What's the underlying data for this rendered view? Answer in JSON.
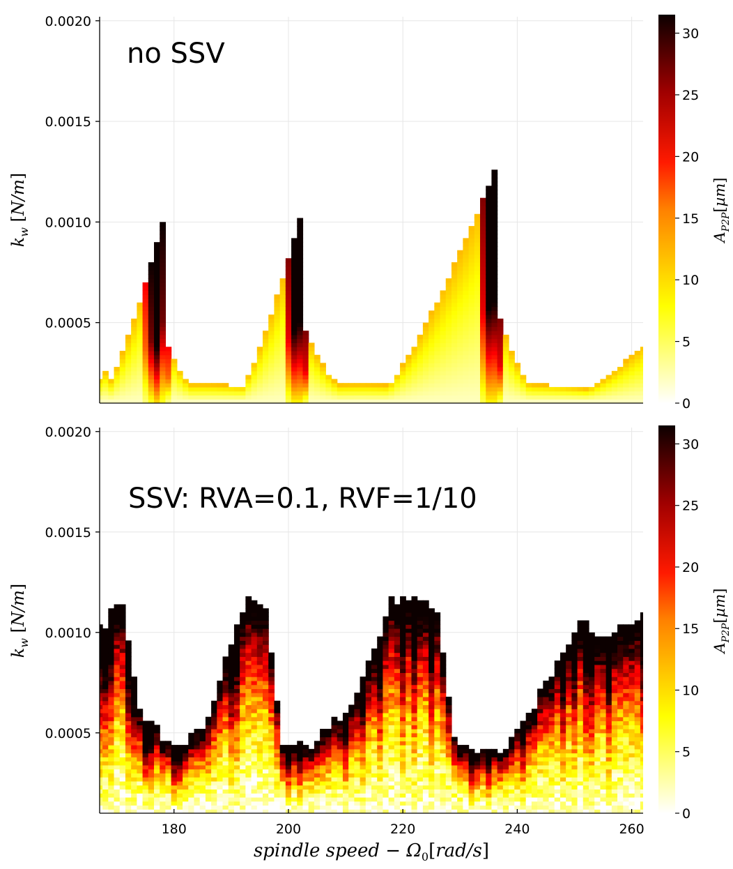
{
  "chart_data": [
    {
      "type": "heatmap",
      "annotation": "no SSV",
      "xlabel": "spindle speed − Ω₀[rad/s]",
      "ylabel": "k_w [N/m]",
      "colorbar_label": "A_P2P [µm]",
      "colormap": "hot (reversed)",
      "xlim": [
        167,
        262
      ],
      "ylim": [
        0.0001,
        0.00202
      ],
      "clim": [
        0,
        31.5
      ],
      "x_ticks": [
        180,
        200,
        220,
        240,
        260
      ],
      "x_tick_labels": [
        "180",
        "200",
        "220",
        "240",
        "260"
      ],
      "y_ticks": [
        0.0005,
        0.001,
        0.0015,
        0.002
      ],
      "y_tick_labels": [
        "0.0005",
        "0.0010",
        "0.0015",
        "0.0020"
      ],
      "cbar_ticks": [
        0,
        5,
        10,
        15,
        20,
        25,
        30
      ],
      "cbar_tick_labels": [
        "0",
        "5",
        "10",
        "15",
        "20",
        "25",
        "30"
      ],
      "grid": true,
      "lobes": [
        {
          "center": 178,
          "peak_kw": 0.00099,
          "min_kw": 0.00016,
          "left_width": 10,
          "right_width": 6
        },
        {
          "center": 202.5,
          "peak_kw": 0.00106,
          "min_kw": 0.000155,
          "left_width": 11,
          "right_width": 8
        },
        {
          "center": 236.5,
          "peak_kw": 0.00128,
          "min_kw": 0.000155,
          "left_width": 20,
          "right_width": 7
        },
        {
          "center": 262,
          "peak_kw": 0.00038,
          "min_kw": 0.00016,
          "left_width": 10,
          "right_width": 1
        }
      ]
    },
    {
      "type": "heatmap",
      "annotation": "SSV: RVA=0.1, RVF=1/10",
      "xlabel": "spindle speed − Ω₀[rad/s]",
      "ylabel": "k_w [N/m]",
      "colorbar_label": "A_P2P [µm]",
      "colormap": "hot (reversed)",
      "xlim": [
        167,
        262
      ],
      "ylim": [
        0.0001,
        0.00202
      ],
      "clim": [
        0,
        31.5
      ],
      "x_ticks": [
        180,
        200,
        220,
        240,
        260
      ],
      "x_tick_labels": [
        "180",
        "200",
        "220",
        "240",
        "260"
      ],
      "y_ticks": [
        0.0005,
        0.001,
        0.0015,
        0.002
      ],
      "y_tick_labels": [
        "0.0005",
        "0.0010",
        "0.0015",
        "0.0020"
      ],
      "cbar_ticks": [
        0,
        5,
        10,
        15,
        20,
        25,
        30
      ],
      "cbar_tick_labels": [
        "0",
        "5",
        "10",
        "15",
        "20",
        "25",
        "30"
      ],
      "grid": true,
      "boundary_kw": [
        [
          167,
          0.001
        ],
        [
          171,
          0.00115
        ],
        [
          174,
          0.0006
        ],
        [
          178,
          0.00046
        ],
        [
          182,
          0.00044
        ],
        [
          186,
          0.00055
        ],
        [
          190,
          0.00095
        ],
        [
          193,
          0.00115
        ],
        [
          196,
          0.0011
        ],
        [
          199,
          0.00043
        ],
        [
          203,
          0.00042
        ],
        [
          207,
          0.0005
        ],
        [
          211,
          0.00066
        ],
        [
          215,
          0.0009
        ],
        [
          218,
          0.00115
        ],
        [
          222,
          0.00114
        ],
        [
          226,
          0.0011
        ],
        [
          229,
          0.00046
        ],
        [
          233,
          0.0004
        ],
        [
          237,
          0.0004
        ],
        [
          241,
          0.00052
        ],
        [
          245,
          0.00074
        ],
        [
          249,
          0.00095
        ],
        [
          251,
          0.00107
        ],
        [
          254,
          0.00098
        ],
        [
          258,
          0.001
        ],
        [
          262,
          0.00108
        ]
      ]
    }
  ]
}
